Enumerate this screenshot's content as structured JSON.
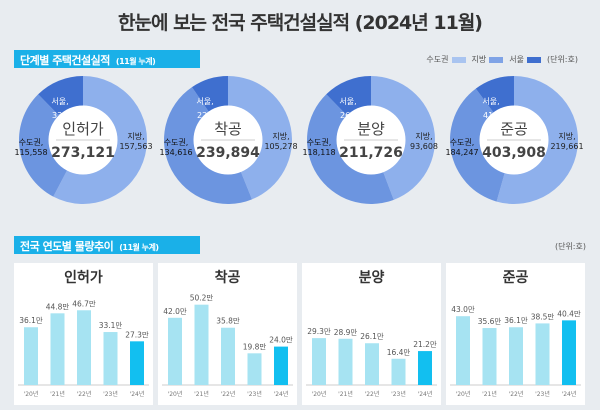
{
  "title": "한눈에 보는 전국 주택건설실적 (2024년 11월)",
  "section1": {
    "label": "단계별 주택건설실적",
    "note": "(11월 누계)"
  },
  "section2": {
    "label": "전국 연도별 물량추이",
    "note": "(11월 누계)"
  },
  "legend": [
    {
      "label": "수도권",
      "color": "#a9c4f0"
    },
    {
      "label": "지방",
      "color": "#7fa3e6"
    },
    {
      "label": "서울",
      "color": "#3f6fcf"
    }
  ],
  "unit": "(단위:호)",
  "colors": {
    "jibang": "#8eb0ec",
    "sudo": "#6c95e0",
    "seoul": "#3f6fcf",
    "bar": "#a6e3f2",
    "bar_current": "#12bff0"
  },
  "chart_data": [
    {
      "type": "pie",
      "subtype": "donut",
      "title": "인허가",
      "total": "273,121",
      "slices": [
        {
          "name": "지방",
          "label": "지방,",
          "value": 157563,
          "text": "157,563"
        },
        {
          "name": "수도권",
          "label": "수도권,",
          "value": 115558,
          "text": "115,558"
        },
        {
          "name": "서울",
          "label": "서울,",
          "value": 33716,
          "text": "33,716"
        }
      ]
    },
    {
      "type": "pie",
      "subtype": "donut",
      "title": "착공",
      "total": "239,894",
      "slices": [
        {
          "name": "지방",
          "label": "지방,",
          "value": 105278,
          "text": "105,278"
        },
        {
          "name": "수도권",
          "label": "수도권,",
          "value": 134616,
          "text": "134,616"
        },
        {
          "name": "서울",
          "label": "서울,",
          "value": 22813,
          "text": "22,813"
        }
      ]
    },
    {
      "type": "pie",
      "subtype": "donut",
      "title": "분양",
      "total": "211,726",
      "slices": [
        {
          "name": "지방",
          "label": "지방,",
          "value": 93608,
          "text": "93,608"
        },
        {
          "name": "수도권",
          "label": "수도권,",
          "value": 118118,
          "text": "118,118"
        },
        {
          "name": "서울",
          "label": "서울,",
          "value": 26084,
          "text": "26,084"
        }
      ]
    },
    {
      "type": "pie",
      "subtype": "donut",
      "title": "준공",
      "total": "403,908",
      "slices": [
        {
          "name": "지방",
          "label": "지방,",
          "value": 219661,
          "text": "219,661"
        },
        {
          "name": "수도권",
          "label": "수도권,",
          "value": 184247,
          "text": "184,247"
        },
        {
          "name": "서울",
          "label": "서울,",
          "value": 41116,
          "text": "41,116"
        }
      ]
    },
    {
      "type": "bar",
      "title": "인허가",
      "categories": [
        "'20년",
        "'21년",
        "'22년",
        "'23년",
        "'24년"
      ],
      "values": [
        36.1,
        44.8,
        46.7,
        33.1,
        27.3
      ],
      "labels": [
        "36.1만",
        "44.8만",
        "46.7만",
        "33.1만",
        "27.3만"
      ]
    },
    {
      "type": "bar",
      "title": "착공",
      "categories": [
        "'20년",
        "'21년",
        "'22년",
        "'23년",
        "'24년"
      ],
      "values": [
        42.0,
        50.2,
        35.8,
        19.8,
        24.0
      ],
      "labels": [
        "42.0만",
        "50.2만",
        "35.8만",
        "19.8만",
        "24.0만"
      ]
    },
    {
      "type": "bar",
      "title": "분양",
      "categories": [
        "'20년",
        "'21년",
        "'22년",
        "'23년",
        "'24년"
      ],
      "values": [
        29.3,
        28.9,
        26.1,
        16.4,
        21.2
      ],
      "labels": [
        "29.3만",
        "28.9만",
        "26.1만",
        "16.4만",
        "21.2만"
      ]
    },
    {
      "type": "bar",
      "title": "준공",
      "categories": [
        "'20년",
        "'21년",
        "'22년",
        "'23년",
        "'24년"
      ],
      "values": [
        43.0,
        35.6,
        36.1,
        38.5,
        40.4
      ],
      "labels": [
        "43.0만",
        "35.6만",
        "36.1만",
        "38.5만",
        "40.4만"
      ]
    }
  ]
}
